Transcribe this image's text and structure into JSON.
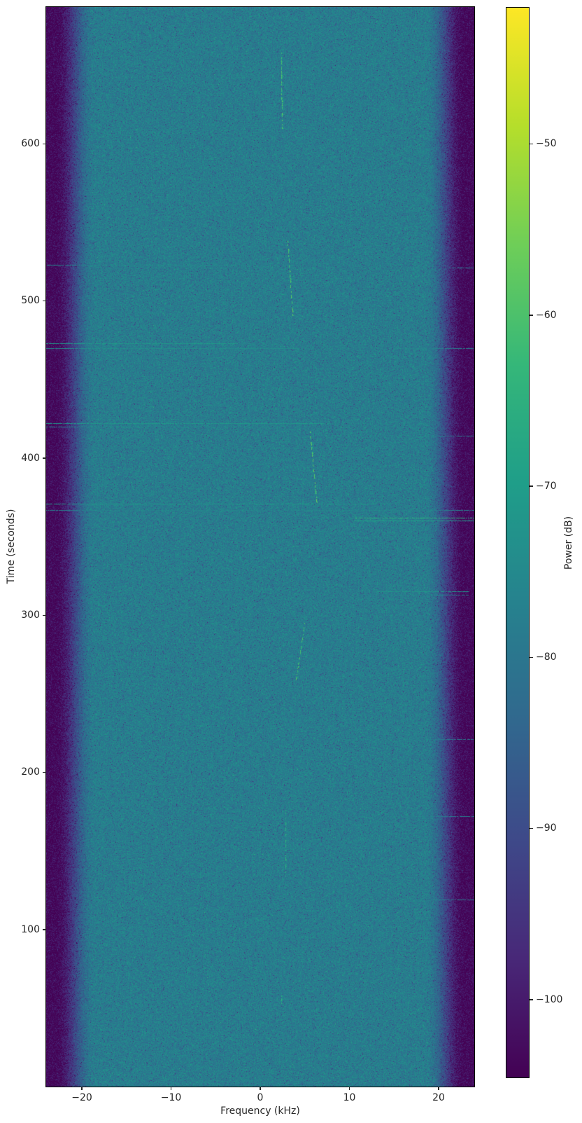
{
  "chart_data": {
    "type": "heatmap",
    "subtype": "spectrogram-waterfall",
    "title": "",
    "xlabel": "Frequency (kHz)",
    "ylabel": "Time (seconds)",
    "colorbar_label": "Power (dB)",
    "xlim": [
      -24,
      24
    ],
    "ylim": [
      0,
      687
    ],
    "clim": [
      -104.6,
      -42.0
    ],
    "x_ticks": [
      -20,
      -10,
      0,
      10,
      20
    ],
    "x_tick_labels": [
      "−20",
      "−10",
      "0",
      "10",
      "20"
    ],
    "y_ticks": [
      100,
      200,
      300,
      400,
      500,
      600
    ],
    "y_tick_labels": [
      "100",
      "200",
      "300",
      "400",
      "500",
      "600"
    ],
    "colorbar_ticks": [
      -50,
      -60,
      -70,
      -80,
      -90,
      -100
    ],
    "colorbar_tick_labels": [
      "−50",
      "−60",
      "−70",
      "−80",
      "−90",
      "−100"
    ],
    "grid": false,
    "legend": "none",
    "colormap": "viridis",
    "colormap_anchors": [
      "#440154",
      "#482878",
      "#3e4989",
      "#31688e",
      "#26828e",
      "#1f9e89",
      "#35b779",
      "#6ece58",
      "#b5de2b",
      "#fde725"
    ],
    "noise_floor": {
      "passband_power_db": -78,
      "stopband_power_db": -103.5,
      "passband_half_width_khz": 18.5,
      "stopband_edge_khz": 23.0,
      "noise_std_db": 3.0,
      "dark_speckle_probability": 0.05
    },
    "features": {
      "chirps": [
        {
          "t_start_s": 610,
          "t_end_s": 658,
          "f_start_khz": 2.43,
          "f_end_khz": 2.33,
          "power_db": -61,
          "style": "dashed"
        },
        {
          "t_start_s": 491,
          "t_end_s": 538,
          "f_start_khz": 3.62,
          "f_end_khz": 3.05,
          "power_db": -60,
          "style": "dashed"
        },
        {
          "t_start_s": 370,
          "t_end_s": 417,
          "f_start_khz": 6.35,
          "f_end_khz": 5.55,
          "power_db": -59,
          "style": "dashed"
        },
        {
          "t_start_s": 259,
          "t_end_s": 295,
          "f_start_khz": 4.0,
          "f_end_khz": 4.95,
          "power_db": -61,
          "style": "dashed"
        },
        {
          "t_start_s": 134,
          "t_end_s": 176,
          "f_start_khz": 2.82,
          "f_end_khz": 2.86,
          "power_db": -66,
          "style": "dashed"
        },
        {
          "t_start_s": 53,
          "t_end_s": 58,
          "f_start_khz": 2.35,
          "f_end_khz": 2.35,
          "power_db": -66,
          "style": "dashed"
        }
      ],
      "streaks": [
        {
          "t_s": 523,
          "f_from_khz": -24,
          "f_to_khz": -1,
          "power_db": -76
        },
        {
          "t_s": 521,
          "f_from_khz": 21,
          "f_to_khz": 24,
          "power_db": -79
        },
        {
          "t_s": 473,
          "f_from_khz": -24,
          "f_to_khz": -2.5,
          "power_db": -71
        },
        {
          "t_s": 470,
          "f_from_khz": -24,
          "f_to_khz": 4.3,
          "power_db": -74
        },
        {
          "t_s": 470,
          "f_from_khz": 14.9,
          "f_to_khz": 24,
          "power_db": -77
        },
        {
          "t_s": 422,
          "f_from_khz": -24,
          "f_to_khz": 7.2,
          "power_db": -71
        },
        {
          "t_s": 420,
          "f_from_khz": -24,
          "f_to_khz": 3.0,
          "power_db": -76
        },
        {
          "t_s": 414,
          "f_from_khz": 16.3,
          "f_to_khz": 24,
          "power_db": -79
        },
        {
          "t_s": 371,
          "f_from_khz": -24,
          "f_to_khz": 13,
          "power_db": -72
        },
        {
          "t_s": 367,
          "f_from_khz": -24,
          "f_to_khz": 24,
          "power_db": -77
        },
        {
          "t_s": 362,
          "f_from_khz": 10.6,
          "f_to_khz": 24,
          "power_db": -65
        },
        {
          "t_s": 360,
          "f_from_khz": 10.6,
          "f_to_khz": 24,
          "power_db": -70
        },
        {
          "t_s": 315,
          "f_from_khz": 12.9,
          "f_to_khz": 23.4,
          "power_db": -72
        },
        {
          "t_s": 313,
          "f_from_khz": 15,
          "f_to_khz": 23.4,
          "power_db": -77
        },
        {
          "t_s": 221,
          "f_from_khz": 18,
          "f_to_khz": 24,
          "power_db": -79
        },
        {
          "t_s": 172,
          "f_from_khz": 17,
          "f_to_khz": 24,
          "power_db": -78
        },
        {
          "t_s": 119,
          "f_from_khz": 19,
          "f_to_khz": 24,
          "power_db": -79
        }
      ]
    }
  }
}
